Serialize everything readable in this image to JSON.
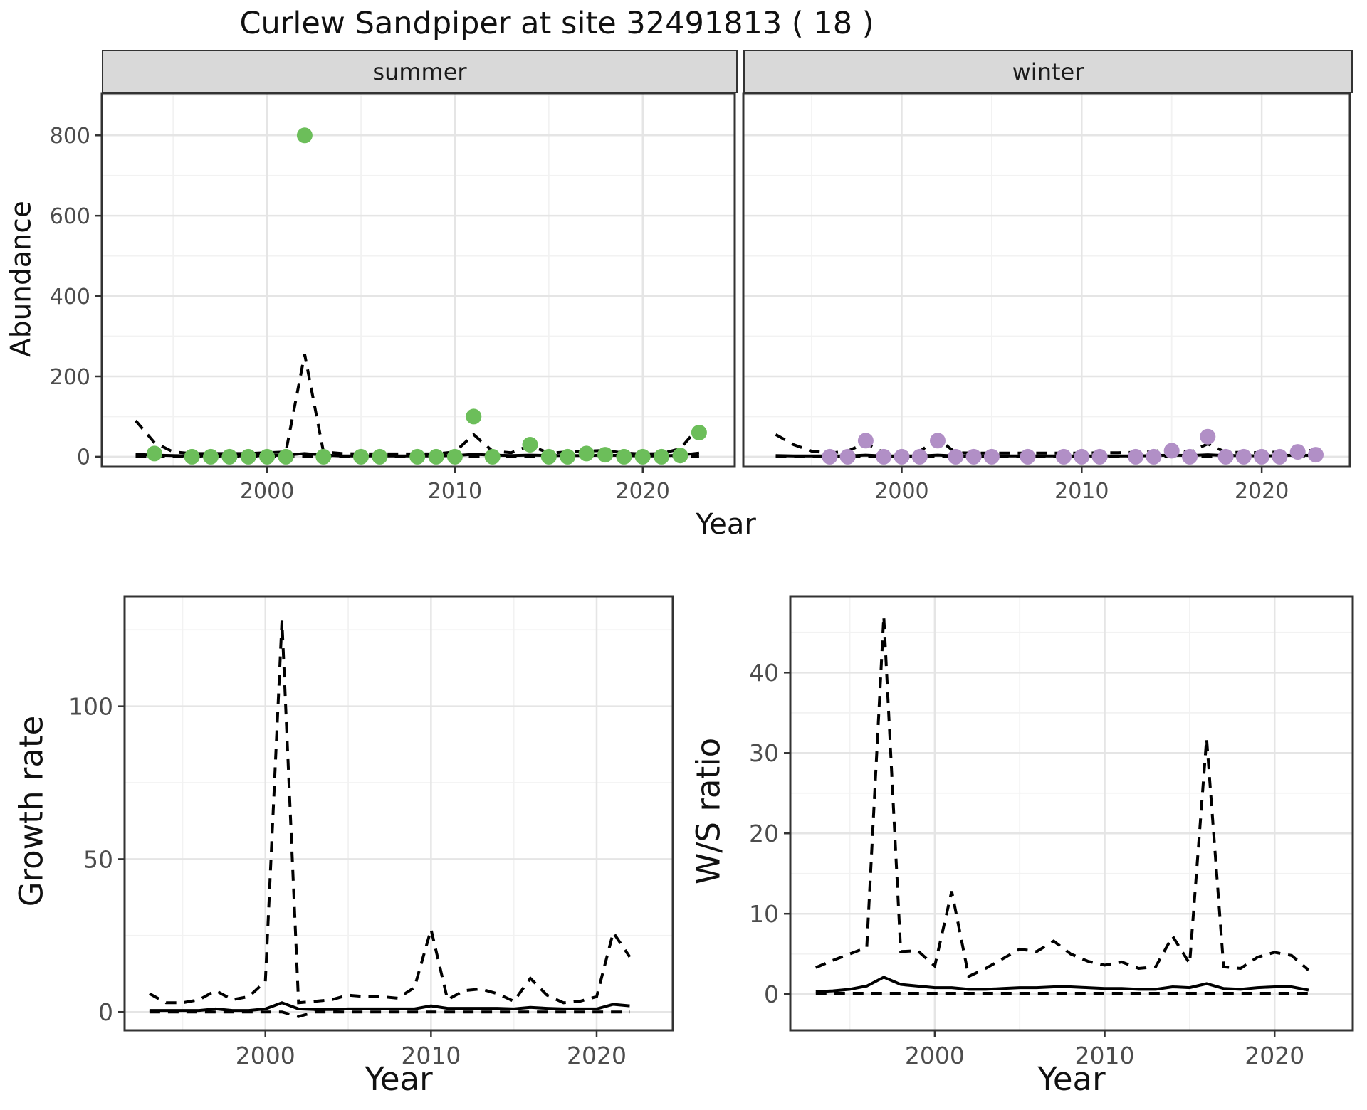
{
  "title": "Curlew Sandpiper at site 32491813 ( 18 )",
  "colors": {
    "summer_point": "#6cbe5a",
    "winter_point": "#b18fc6",
    "line": "#000000",
    "panel_bg": "#ffffff",
    "grid_major": "#e5e5e5",
    "grid_minor": "#f2f2f2",
    "border": "#333333",
    "tick": "#333333",
    "tick_label": "#4d4d4d",
    "strip_bg": "#d9d9d9"
  },
  "top_axis": {
    "xlabel": "Year",
    "ylabel": "Abundance"
  },
  "chart_data": [
    {
      "type": "line",
      "facet": "summer",
      "ylabel": "Abundance",
      "xlabel": "Year",
      "legend": "none",
      "grid": "on",
      "xlim": [
        1991.2,
        2024.9
      ],
      "ylim": [
        -25,
        905
      ],
      "xticks": [
        2000,
        2010,
        2020
      ],
      "yticks": [
        0,
        200,
        400,
        600,
        800
      ],
      "x": [
        1993,
        1994,
        1995,
        1996,
        1997,
        1998,
        1999,
        2000,
        2001,
        2002,
        2003,
        2004,
        2005,
        2006,
        2007,
        2008,
        2009,
        2010,
        2011,
        2012,
        2013,
        2014,
        2015,
        2016,
        2017,
        2018,
        2019,
        2020,
        2021,
        2022,
        2023
      ],
      "series": [
        {
          "name": "upper-ci",
          "style": "dashed",
          "values": [
            90,
            35,
            12,
            8,
            8,
            8,
            8,
            10,
            12,
            255,
            12,
            8,
            7,
            7,
            7,
            7,
            7,
            12,
            55,
            14,
            10,
            28,
            9,
            12,
            14,
            16,
            9,
            7,
            8,
            20,
            75
          ]
        },
        {
          "name": "estimate",
          "style": "solid",
          "values": [
            6,
            4,
            3,
            2,
            2,
            2,
            2,
            3,
            4,
            8,
            4,
            2,
            2,
            2,
            2,
            2,
            2,
            3,
            6,
            4,
            3,
            4,
            3,
            3,
            3,
            4,
            3,
            2,
            2,
            4,
            9
          ]
        },
        {
          "name": "lower-ci",
          "style": "dashed",
          "values": [
            1,
            0,
            0,
            0,
            0,
            0,
            0,
            0,
            0,
            0,
            0,
            0,
            0,
            0,
            0,
            0,
            0,
            0,
            0,
            0,
            0,
            0,
            0,
            0,
            0,
            0,
            0,
            0,
            0,
            0,
            1
          ]
        }
      ],
      "points": {
        "color": "#6cbe5a",
        "data": [
          [
            1994,
            8
          ],
          [
            1996,
            0
          ],
          [
            1997,
            0
          ],
          [
            1998,
            0
          ],
          [
            1999,
            0
          ],
          [
            2000,
            0
          ],
          [
            2001,
            0
          ],
          [
            2002,
            800
          ],
          [
            2003,
            0
          ],
          [
            2005,
            0
          ],
          [
            2006,
            0
          ],
          [
            2008,
            0
          ],
          [
            2009,
            0
          ],
          [
            2010,
            0
          ],
          [
            2011,
            100
          ],
          [
            2012,
            0
          ],
          [
            2014,
            30
          ],
          [
            2015,
            0
          ],
          [
            2016,
            0
          ],
          [
            2017,
            8
          ],
          [
            2018,
            5
          ],
          [
            2019,
            0
          ],
          [
            2020,
            0
          ],
          [
            2021,
            0
          ],
          [
            2022,
            3
          ],
          [
            2023,
            60
          ]
        ]
      }
    },
    {
      "type": "line",
      "facet": "winter",
      "ylabel": "Abundance",
      "xlabel": "Year",
      "legend": "none",
      "grid": "on",
      "xlim": [
        1991.2,
        2024.9
      ],
      "ylim": [
        -25,
        905
      ],
      "xticks": [
        2000,
        2010,
        2020
      ],
      "yticks": [
        0,
        200,
        400,
        600,
        800
      ],
      "x": [
        1993,
        1994,
        1995,
        1996,
        1997,
        1998,
        1999,
        2000,
        2001,
        2002,
        2003,
        2004,
        2005,
        2006,
        2007,
        2008,
        2009,
        2010,
        2011,
        2012,
        2013,
        2014,
        2015,
        2016,
        2017,
        2018,
        2019,
        2020,
        2021,
        2022,
        2023
      ],
      "series": [
        {
          "name": "upper-ci",
          "style": "dashed",
          "values": [
            55,
            30,
            14,
            9,
            14,
            34,
            10,
            8,
            13,
            45,
            10,
            9,
            9,
            9,
            9,
            9,
            9,
            9,
            10,
            10,
            11,
            13,
            20,
            11,
            32,
            11,
            11,
            10,
            12,
            18,
            14
          ]
        },
        {
          "name": "estimate",
          "style": "solid",
          "values": [
            3,
            2,
            2,
            2,
            2,
            4,
            2,
            2,
            2,
            4,
            2,
            2,
            2,
            2,
            2,
            2,
            2,
            2,
            2,
            2,
            2,
            3,
            4,
            3,
            5,
            3,
            3,
            2,
            3,
            4,
            3
          ]
        },
        {
          "name": "lower-ci",
          "style": "dashed",
          "values": [
            0,
            0,
            0,
            0,
            0,
            0,
            0,
            0,
            0,
            0,
            0,
            0,
            0,
            0,
            0,
            0,
            0,
            0,
            0,
            0,
            0,
            0,
            0,
            0,
            0,
            0,
            0,
            0,
            0,
            0,
            0
          ]
        }
      ],
      "points": {
        "color": "#b18fc6",
        "data": [
          [
            1996,
            0
          ],
          [
            1997,
            0
          ],
          [
            1998,
            40
          ],
          [
            1999,
            0
          ],
          [
            2000,
            0
          ],
          [
            2001,
            0
          ],
          [
            2002,
            40
          ],
          [
            2003,
            0
          ],
          [
            2004,
            0
          ],
          [
            2005,
            0
          ],
          [
            2007,
            0
          ],
          [
            2009,
            0
          ],
          [
            2010,
            0
          ],
          [
            2011,
            0
          ],
          [
            2013,
            0
          ],
          [
            2014,
            0
          ],
          [
            2015,
            15
          ],
          [
            2016,
            0
          ],
          [
            2017,
            50
          ],
          [
            2018,
            0
          ],
          [
            2019,
            0
          ],
          [
            2020,
            0
          ],
          [
            2021,
            0
          ],
          [
            2022,
            12
          ],
          [
            2023,
            5
          ]
        ]
      }
    },
    {
      "type": "line",
      "facet": "",
      "ylabel": "Growth rate",
      "xlabel": "Year",
      "legend": "none",
      "grid": "on",
      "xlim": [
        1991.5,
        2024.6
      ],
      "ylim": [
        -6,
        136
      ],
      "xticks": [
        2000,
        2010,
        2020
      ],
      "yticks": [
        0,
        50,
        100
      ],
      "x": [
        1993,
        1994,
        1995,
        1996,
        1997,
        1998,
        1999,
        2000,
        2001,
        2002,
        2003,
        2004,
        2005,
        2006,
        2007,
        2008,
        2009,
        2010,
        2011,
        2012,
        2013,
        2014,
        2015,
        2016,
        2017,
        2018,
        2019,
        2020,
        2021,
        2022
      ],
      "series": [
        {
          "name": "upper-ci",
          "style": "dashed",
          "values": [
            6,
            3,
            3,
            4,
            7,
            4,
            5,
            10,
            128,
            3,
            3.5,
            4,
            5.5,
            5,
            5,
            4.5,
            8,
            27,
            4,
            7,
            7.5,
            6,
            3.5,
            11,
            5.5,
            3,
            3.5,
            5,
            26,
            18
          ]
        },
        {
          "name": "estimate",
          "style": "solid",
          "values": [
            0.5,
            0.5,
            0.5,
            0.5,
            1,
            0.5,
            0.5,
            1,
            3,
            1,
            0.8,
            0.8,
            1,
            1,
            1,
            1,
            1,
            2,
            1.2,
            1.2,
            1.2,
            1.2,
            1,
            1.5,
            1.2,
            1,
            1,
            1,
            2.5,
            2
          ]
        },
        {
          "name": "lower-ci",
          "style": "dashed",
          "values": [
            0,
            0,
            0,
            0,
            0,
            0,
            0,
            0,
            0,
            -1.5,
            0,
            0,
            0,
            0,
            0,
            0,
            0,
            0,
            0,
            0,
            0,
            0,
            0,
            0,
            0,
            0,
            0,
            0,
            0,
            0
          ]
        }
      ]
    },
    {
      "type": "line",
      "facet": "",
      "ylabel": "W/S ratio",
      "xlabel": "Year",
      "legend": "none",
      "grid": "on",
      "xlim": [
        1991.5,
        2024.6
      ],
      "ylim": [
        -4.5,
        49.5
      ],
      "xticks": [
        2000,
        2010,
        2020
      ],
      "yticks": [
        0,
        10,
        20,
        30,
        40
      ],
      "x": [
        1993,
        1994,
        1995,
        1996,
        1997,
        1998,
        1999,
        2000,
        2001,
        2002,
        2003,
        2004,
        2005,
        2006,
        2007,
        2008,
        2009,
        2010,
        2011,
        2012,
        2013,
        2014,
        2015,
        2016,
        2017,
        2018,
        2019,
        2020,
        2021,
        2022
      ],
      "series": [
        {
          "name": "upper-ci",
          "style": "dashed",
          "values": [
            3.3,
            4.2,
            5,
            5.8,
            47,
            5.3,
            5.4,
            3.5,
            12.8,
            2.2,
            3.2,
            4.4,
            5.6,
            5.3,
            6.6,
            5,
            4.1,
            3.6,
            4,
            3.2,
            3.4,
            7.2,
            3.8,
            31.8,
            3.4,
            3.2,
            4.6,
            5.2,
            4.8,
            3
          ]
        },
        {
          "name": "estimate",
          "style": "solid",
          "values": [
            0.3,
            0.4,
            0.6,
            1,
            2.1,
            1.2,
            1,
            0.8,
            0.8,
            0.6,
            0.6,
            0.7,
            0.8,
            0.8,
            0.9,
            0.9,
            0.8,
            0.7,
            0.7,
            0.6,
            0.6,
            0.9,
            0.8,
            1.3,
            0.7,
            0.6,
            0.8,
            0.9,
            0.9,
            0.5
          ]
        },
        {
          "name": "lower-ci",
          "style": "dashed",
          "values": [
            0.1,
            0.1,
            0.1,
            0.1,
            0.1,
            0.1,
            0.1,
            0.1,
            0.1,
            0.1,
            0.1,
            0.1,
            0.1,
            0.1,
            0.1,
            0.1,
            0.1,
            0.1,
            0.1,
            0.1,
            0.1,
            0.1,
            0.1,
            0.1,
            0.1,
            0.1,
            0.1,
            0.1,
            0.1,
            0.1
          ]
        }
      ]
    }
  ]
}
